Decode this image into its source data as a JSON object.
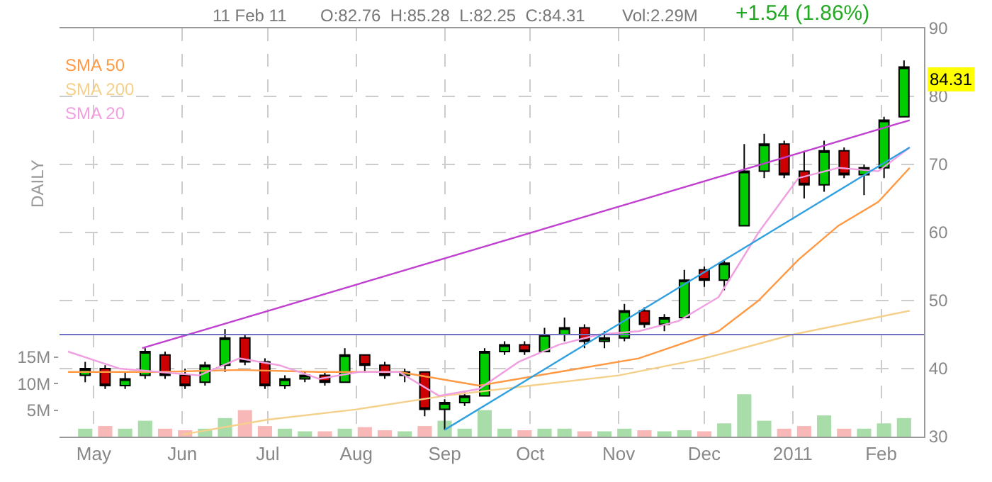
{
  "chart_data": {
    "type": "candlestick",
    "annotations": [
      "11 Feb 11",
      "O:82.76  H:85.28  L:82.25  C:84.31",
      "Vol:2.29M",
      "+1.54 (1.86%)",
      "DAILY",
      "84.31"
    ],
    "x": [
      "2010-04-28",
      "2010-05-05",
      "2010-05-12",
      "2010-05-19",
      "2010-05-26",
      "2010-06-02",
      "2010-06-09",
      "2010-06-16",
      "2010-06-23",
      "2010-06-30",
      "2010-07-07",
      "2010-07-14",
      "2010-07-21",
      "2010-07-28",
      "2010-08-04",
      "2010-08-11",
      "2010-08-18",
      "2010-08-25",
      "2010-09-01",
      "2010-09-08",
      "2010-09-15",
      "2010-09-22",
      "2010-09-29",
      "2010-10-06",
      "2010-10-13",
      "2010-10-20",
      "2010-10-27",
      "2010-11-03",
      "2010-11-10",
      "2010-11-17",
      "2010-11-24",
      "2010-12-01",
      "2010-12-08",
      "2010-12-15",
      "2010-12-22",
      "2010-12-29",
      "2011-01-05",
      "2011-01-12",
      "2011-01-19",
      "2011-01-26",
      "2011-02-02",
      "2011-02-09"
    ],
    "ohlc": [
      [
        39,
        41,
        38,
        40
      ],
      [
        40,
        40.5,
        37,
        37.5
      ],
      [
        37.5,
        39.5,
        37,
        38.5
      ],
      [
        39,
        43,
        38.5,
        42.5
      ],
      [
        42,
        42.5,
        38.5,
        39
      ],
      [
        39,
        40,
        37,
        37.5
      ],
      [
        38,
        41,
        37.5,
        40.5
      ],
      [
        40.5,
        45.8,
        39.5,
        44.5
      ],
      [
        44.5,
        45,
        40.5,
        41
      ],
      [
        41,
        41.5,
        37,
        37.5
      ],
      [
        37.5,
        39,
        37,
        38.5
      ],
      [
        38.5,
        39.5,
        38,
        39
      ],
      [
        39,
        39.5,
        37.5,
        38
      ],
      [
        38,
        43,
        38,
        42
      ],
      [
        42,
        42,
        39.5,
        40.5
      ],
      [
        40.5,
        41,
        38.5,
        39
      ],
      [
        39,
        40,
        38,
        39.5
      ],
      [
        39.5,
        39.5,
        33,
        34
      ],
      [
        34,
        35.5,
        31,
        35
      ],
      [
        35,
        36.5,
        34.5,
        36
      ],
      [
        36,
        43,
        36,
        42.5
      ],
      [
        42.5,
        44,
        42,
        43.5
      ],
      [
        43.5,
        44,
        42,
        42.5
      ],
      [
        42.5,
        46,
        42.5,
        45
      ],
      [
        45,
        47.5,
        44,
        46
      ],
      [
        46,
        46.5,
        43,
        44
      ],
      [
        44,
        45.5,
        43,
        44.5
      ],
      [
        44.5,
        49.5,
        44,
        48.5
      ],
      [
        48.5,
        49,
        46,
        46.5
      ],
      [
        46.5,
        48,
        45.5,
        47.5
      ],
      [
        47.5,
        54.5,
        47.5,
        53
      ],
      [
        54.5,
        55,
        52,
        53
      ],
      [
        53,
        56,
        51.5,
        55.5
      ],
      [
        61,
        73,
        61,
        69
      ],
      [
        69,
        74.5,
        68,
        73
      ],
      [
        73,
        73.5,
        68,
        68.5
      ],
      [
        69,
        72,
        65,
        67
      ],
      [
        67,
        73.5,
        66,
        72
      ],
      [
        72,
        72.5,
        68,
        68.5
      ],
      [
        68.5,
        70,
        65.5,
        69.5
      ],
      [
        69.5,
        77,
        68,
        76.5
      ],
      [
        77,
        85.28,
        77,
        84.31
      ]
    ],
    "colors": [
      "#00cc00",
      "#cc0000",
      "#00cc00",
      "#00cc00",
      "#cc0000",
      "#cc0000",
      "#00cc00",
      "#00cc00",
      "#cc0000",
      "#cc0000",
      "#00cc00",
      "#00cc00",
      "#cc0000",
      "#00cc00",
      "#cc0000",
      "#cc0000",
      "#00cc00",
      "#cc0000",
      "#00cc00",
      "#00cc00",
      "#00cc00",
      "#00cc00",
      "#cc0000",
      "#00cc00",
      "#00cc00",
      "#cc0000",
      "#00cc00",
      "#00cc00",
      "#cc0000",
      "#00cc00",
      "#00cc00",
      "#cc0000",
      "#00cc00",
      "#00cc00",
      "#00cc00",
      "#cc0000",
      "#cc0000",
      "#00cc00",
      "#cc0000",
      "#00cc00",
      "#00cc00",
      "#00cc00"
    ],
    "series": [
      {
        "type": "bar",
        "axis": "y2",
        "x": [
          "2010-04-28",
          "2010-05-05",
          "2010-05-12",
          "2010-05-19",
          "2010-05-26",
          "2010-06-02",
          "2010-06-09",
          "2010-06-16",
          "2010-06-23",
          "2010-06-30",
          "2010-07-07",
          "2010-07-14",
          "2010-07-21",
          "2010-07-28",
          "2010-08-04",
          "2010-08-11",
          "2010-08-18",
          "2010-08-25",
          "2010-09-01",
          "2010-09-08",
          "2010-09-15",
          "2010-09-22",
          "2010-09-29",
          "2010-10-06",
          "2010-10-13",
          "2010-10-20",
          "2010-10-27",
          "2010-11-03",
          "2010-11-10",
          "2010-11-17",
          "2010-11-24",
          "2010-12-01",
          "2010-12-08",
          "2010-12-15",
          "2010-12-22",
          "2010-12-29",
          "2011-01-05",
          "2011-01-12",
          "2011-01-19",
          "2011-01-26",
          "2011-02-02",
          "2011-02-09"
        ],
        "values": [
          1.5,
          2,
          1.5,
          3,
          1.5,
          1.2,
          1.5,
          3.5,
          5,
          2,
          1.5,
          1,
          1,
          1.5,
          1.8,
          1.2,
          1,
          2,
          3,
          1.5,
          5,
          1.5,
          1.2,
          1.5,
          1.5,
          1,
          1,
          1.5,
          1.2,
          1,
          1.2,
          1,
          2.5,
          8,
          3,
          1.5,
          2,
          4,
          1.5,
          1.5,
          2.5,
          3.5
        ],
        "colors": [
          "#a8dca8",
          "#f8b8b8",
          "#a8dca8",
          "#a8dca8",
          "#f8b8b8",
          "#f8b8b8",
          "#a8dca8",
          "#a8dca8",
          "#f8b8b8",
          "#f8b8b8",
          "#a8dca8",
          "#a8dca8",
          "#f8b8b8",
          "#a8dca8",
          "#f8b8b8",
          "#f8b8b8",
          "#a8dca8",
          "#f8b8b8",
          "#a8dca8",
          "#a8dca8",
          "#a8dca8",
          "#a8dca8",
          "#f8b8b8",
          "#a8dca8",
          "#a8dca8",
          "#f8b8b8",
          "#a8dca8",
          "#a8dca8",
          "#f8b8b8",
          "#a8dca8",
          "#a8dca8",
          "#f8b8b8",
          "#a8dca8",
          "#a8dca8",
          "#a8dca8",
          "#f8b8b8",
          "#f8b8b8",
          "#a8dca8",
          "#f8b8b8",
          "#a8dca8",
          "#a8dca8",
          "#a8dca8"
        ]
      },
      {
        "type": "line",
        "name": "SMA 50",
        "color": "#ff9944",
        "x": [
          "2010-04-22",
          "2010-05-24",
          "2010-06-21",
          "2010-07-19",
          "2010-08-16",
          "2010-09-13",
          "2010-10-11",
          "2010-11-08",
          "2010-12-06",
          "2010-12-20",
          "2011-01-03",
          "2011-01-17",
          "2011-01-31",
          "2011-02-11"
        ],
        "values": [
          39.5,
          39.5,
          39.8,
          39.5,
          39.5,
          37.5,
          39.5,
          41.5,
          45.5,
          50,
          56,
          61,
          64.5,
          69.5
        ]
      },
      {
        "type": "line",
        "name": "SMA 200",
        "color": "#f5d08a",
        "x": [
          "2010-06-01",
          "2010-07-01",
          "2010-08-01",
          "2010-09-01",
          "2010-10-01",
          "2010-11-01",
          "2010-12-01",
          "2011-01-01",
          "2011-02-11"
        ],
        "values": [
          30.3,
          32.5,
          34,
          36,
          37.5,
          39,
          41.5,
          45,
          48.5
        ]
      },
      {
        "type": "line",
        "name": "SMA 20",
        "color": "#f0a0e0",
        "x": [
          "2010-04-22",
          "2010-05-10",
          "2010-05-24",
          "2010-06-07",
          "2010-06-21",
          "2010-07-05",
          "2010-07-19",
          "2010-08-02",
          "2010-08-16",
          "2010-08-30",
          "2010-09-13",
          "2010-09-27",
          "2010-10-11",
          "2010-10-25",
          "2010-11-08",
          "2010-11-22",
          "2010-12-06",
          "2010-12-20",
          "2011-01-03",
          "2011-01-17",
          "2011-01-31",
          "2011-02-11"
        ],
        "values": [
          42.5,
          40,
          39.5,
          39,
          41.5,
          40.5,
          38.5,
          39.5,
          39.5,
          36,
          37,
          41,
          43.5,
          45,
          45.5,
          47,
          50.5,
          60,
          68,
          69.5,
          69,
          72.5
        ]
      },
      {
        "type": "line",
        "color": "#c040d0",
        "x": [
          "2010-05-18",
          "2011-02-11"
        ],
        "values": [
          43,
          76.5
        ]
      },
      {
        "type": "line",
        "color": "#30a0e0",
        "x": [
          "2010-09-01",
          "2011-02-11"
        ],
        "values": [
          31,
          72.5
        ]
      }
    ],
    "ref_lines": [
      {
        "axis": "y",
        "value": 45,
        "color": "#7070c0"
      }
    ],
    "xlim": [
      "2010-04-19",
      "2011-02-16"
    ],
    "xticks": [
      {
        "value": "2010-05-01",
        "label": "May"
      },
      {
        "value": "2010-06-01",
        "label": "Jun"
      },
      {
        "value": "2010-07-01",
        "label": "Jul"
      },
      {
        "value": "2010-08-01",
        "label": "Aug"
      },
      {
        "value": "2010-09-01",
        "label": "Sep"
      },
      {
        "value": "2010-10-01",
        "label": "Oct"
      },
      {
        "value": "2010-11-01",
        "label": "Nov"
      },
      {
        "value": "2010-12-01",
        "label": "Dec"
      },
      {
        "value": "2011-01-01",
        "label": "2011"
      },
      {
        "value": "2011-02-01",
        "label": "Feb"
      }
    ],
    "ylim": [
      30,
      90
    ],
    "yticks": [
      30,
      40,
      50,
      60,
      70,
      80,
      90
    ],
    "y2lim": [
      0,
      77
    ],
    "y2ticks": [
      {
        "value": 5,
        "label": "5M"
      },
      {
        "value": 10,
        "label": "10M"
      },
      {
        "value": 15,
        "label": "15M"
      }
    ],
    "grid": true,
    "legend": "top left"
  }
}
